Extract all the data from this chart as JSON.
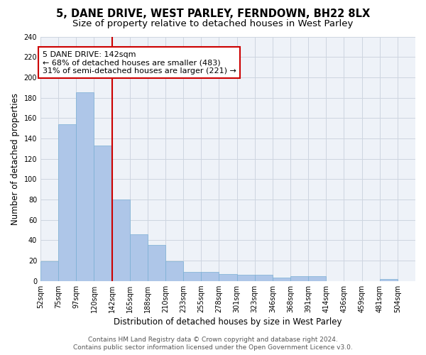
{
  "title1": "5, DANE DRIVE, WEST PARLEY, FERNDOWN, BH22 8LX",
  "title2": "Size of property relative to detached houses in West Parley",
  "xlabel": "Distribution of detached houses by size in West Parley",
  "ylabel": "Number of detached properties",
  "footer1": "Contains HM Land Registry data © Crown copyright and database right 2024.",
  "footer2": "Contains public sector information licensed under the Open Government Licence v3.0.",
  "annotation_line1": "5 DANE DRIVE: 142sqm",
  "annotation_line2": "← 68% of detached houses are smaller (483)",
  "annotation_line3": "31% of semi-detached houses are larger (221) →",
  "bar_color": "#aec6e8",
  "bar_edge_color": "#7aafd4",
  "redline_index": 4,
  "categories": [
    "52sqm",
    "75sqm",
    "97sqm",
    "120sqm",
    "142sqm",
    "165sqm",
    "188sqm",
    "210sqm",
    "233sqm",
    "255sqm",
    "278sqm",
    "301sqm",
    "323sqm",
    "346sqm",
    "368sqm",
    "391sqm",
    "414sqm",
    "436sqm",
    "459sqm",
    "481sqm",
    "504sqm"
  ],
  "values": [
    19,
    154,
    185,
    133,
    80,
    46,
    35,
    19,
    9,
    9,
    7,
    6,
    6,
    3,
    5,
    5,
    0,
    0,
    0,
    2,
    0
  ],
  "ylim": [
    0,
    240
  ],
  "yticks": [
    0,
    20,
    40,
    60,
    80,
    100,
    120,
    140,
    160,
    180,
    200,
    220,
    240
  ],
  "grid_color": "#cdd5e0",
  "background_color": "#eef2f8",
  "annotation_box_color": "#ffffff",
  "annotation_box_edge": "#cc0000",
  "redline_color": "#cc0000",
  "title_fontsize": 10.5,
  "subtitle_fontsize": 9.5,
  "axis_label_fontsize": 8.5,
  "tick_fontsize": 7,
  "annotation_fontsize": 8,
  "footer_fontsize": 6.5
}
